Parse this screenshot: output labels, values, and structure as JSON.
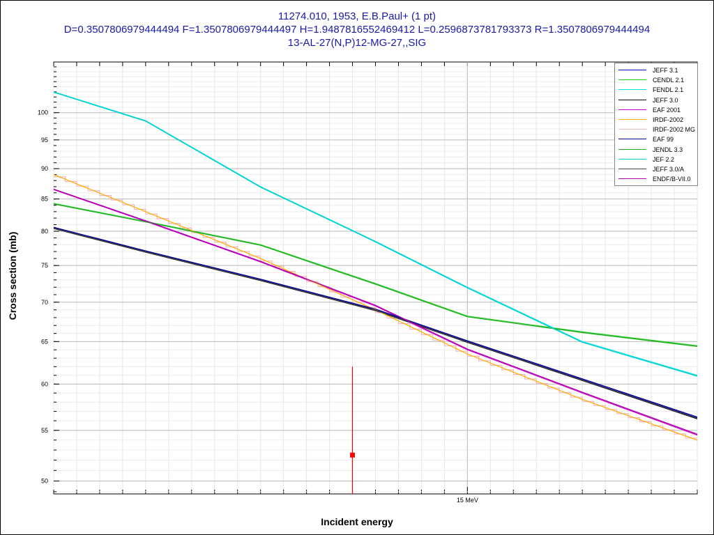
{
  "window": {
    "title_lines": [
      "11274.010, 1953, E.B.Paul+ (1 pt)",
      "D=0.3507806979444494 F=1.3507806979444497 H=1.9487816552469412 L=0.2596873781793373 R=1.3507806979444494",
      "13-AL-27(N,P)12-MG-27,,SIG"
    ]
  },
  "chart_data": {
    "type": "line",
    "title": "11274.010, 1953, E.B.Paul+ (1 pt)",
    "xlabel": "Incident energy",
    "ylabel": "Cross section (mb)",
    "xlim": [
      13.2,
      16.0
    ],
    "ylim": [
      48.8,
      110
    ],
    "y_scale": "log",
    "grid": true,
    "legend_placement": "top-right",
    "x_ticks": [
      {
        "value": 15.0,
        "label": "15 MeV"
      }
    ],
    "y_ticks": [
      50,
      55,
      60,
      65,
      70,
      75,
      80,
      85,
      90,
      95,
      100
    ],
    "series": [
      {
        "name": "JEFF 3.1",
        "color": "#0000cc",
        "style": "line",
        "x": [
          13.2,
          13.6,
          14.1,
          14.6,
          15.0,
          15.5,
          16.0
        ],
        "y": [
          80.5,
          77.0,
          73.0,
          69.0,
          65.0,
          60.5,
          56.3
        ]
      },
      {
        "name": "CENDL 2.1",
        "color": "#22cc22",
        "style": "line",
        "x": [
          13.2,
          13.6,
          14.1,
          14.6,
          15.0,
          15.5,
          16.0
        ],
        "y": [
          84.3,
          81.5,
          78.0,
          72.5,
          68.2,
          66.2,
          64.5
        ]
      },
      {
        "name": "FENDL 2.1",
        "color": "#00e0e0",
        "style": "line",
        "x": [
          13.2,
          13.6,
          14.1,
          14.6,
          15.0,
          15.5,
          16.0
        ],
        "y": [
          104.0,
          98.5,
          87.0,
          78.5,
          72.0,
          65.0,
          61.0
        ]
      },
      {
        "name": "JEFF 3.0",
        "color": "#000000",
        "style": "line",
        "x": [
          13.2,
          13.6,
          14.1,
          14.6,
          15.0,
          15.5,
          16.0
        ],
        "y": [
          80.4,
          76.9,
          72.9,
          68.9,
          64.9,
          60.4,
          56.2
        ]
      },
      {
        "name": "EAF 2001",
        "color": "#cc00cc",
        "style": "line",
        "x": [
          13.2,
          13.6,
          14.1,
          14.6,
          15.0,
          15.5,
          16.0
        ],
        "y": [
          86.5,
          81.5,
          75.5,
          69.5,
          64.0,
          59.0,
          54.5
        ]
      },
      {
        "name": "IRDF-2002",
        "color": "#ffaa00",
        "style": "line",
        "x": [
          13.2,
          13.6,
          14.1,
          14.6,
          15.0,
          15.5,
          16.0
        ],
        "y": [
          89.0,
          83.0,
          76.0,
          69.0,
          63.5,
          58.3,
          54.0
        ]
      },
      {
        "name": "IRDF-2002 MG",
        "color": "#f0b8b8",
        "style": "step",
        "x": [
          13.2,
          13.6,
          14.1,
          14.6,
          15.0,
          15.5,
          16.0
        ],
        "y": [
          89.0,
          83.0,
          76.0,
          69.0,
          63.5,
          58.3,
          54.0
        ]
      },
      {
        "name": "EAF 99",
        "color": "#000088",
        "style": "line",
        "x": [
          13.2,
          13.6,
          14.1,
          14.6,
          15.0,
          15.5,
          16.0
        ],
        "y": [
          80.6,
          77.1,
          73.1,
          69.1,
          65.1,
          60.6,
          56.4
        ]
      },
      {
        "name": "JENDL 3.3",
        "color": "#22aa22",
        "style": "line",
        "x": [
          13.2,
          13.6,
          14.1,
          14.6,
          15.0,
          15.5,
          16.0
        ],
        "y": [
          84.2,
          81.4,
          77.9,
          72.4,
          68.1,
          66.1,
          64.4
        ]
      },
      {
        "name": "JEF 2.2",
        "color": "#00cccc",
        "style": "line",
        "x": [
          13.2,
          13.6,
          14.1,
          14.6,
          15.0,
          15.5,
          16.0
        ],
        "y": [
          103.9,
          98.4,
          86.9,
          78.4,
          71.9,
          64.9,
          60.9
        ]
      },
      {
        "name": "JEFF 3.0/A",
        "color": "#444444",
        "style": "line",
        "x": [
          13.2,
          13.6,
          14.1,
          14.6,
          15.0,
          15.5,
          16.0
        ],
        "y": [
          80.45,
          76.95,
          72.95,
          68.95,
          64.95,
          60.45,
          56.25
        ]
      },
      {
        "name": "ENDF/B-VII.0",
        "color": "#aa00aa",
        "style": "line",
        "x": [
          13.2,
          13.6,
          14.1,
          14.6,
          15.0,
          15.5,
          16.0
        ],
        "y": [
          86.6,
          81.6,
          75.6,
          69.6,
          64.1,
          59.1,
          54.6
        ]
      }
    ],
    "experimental": [
      {
        "x": 14.5,
        "y": 52.5,
        "y_err_low": 48.8,
        "y_err_high": 62.0,
        "color": "#ff0000"
      }
    ]
  }
}
